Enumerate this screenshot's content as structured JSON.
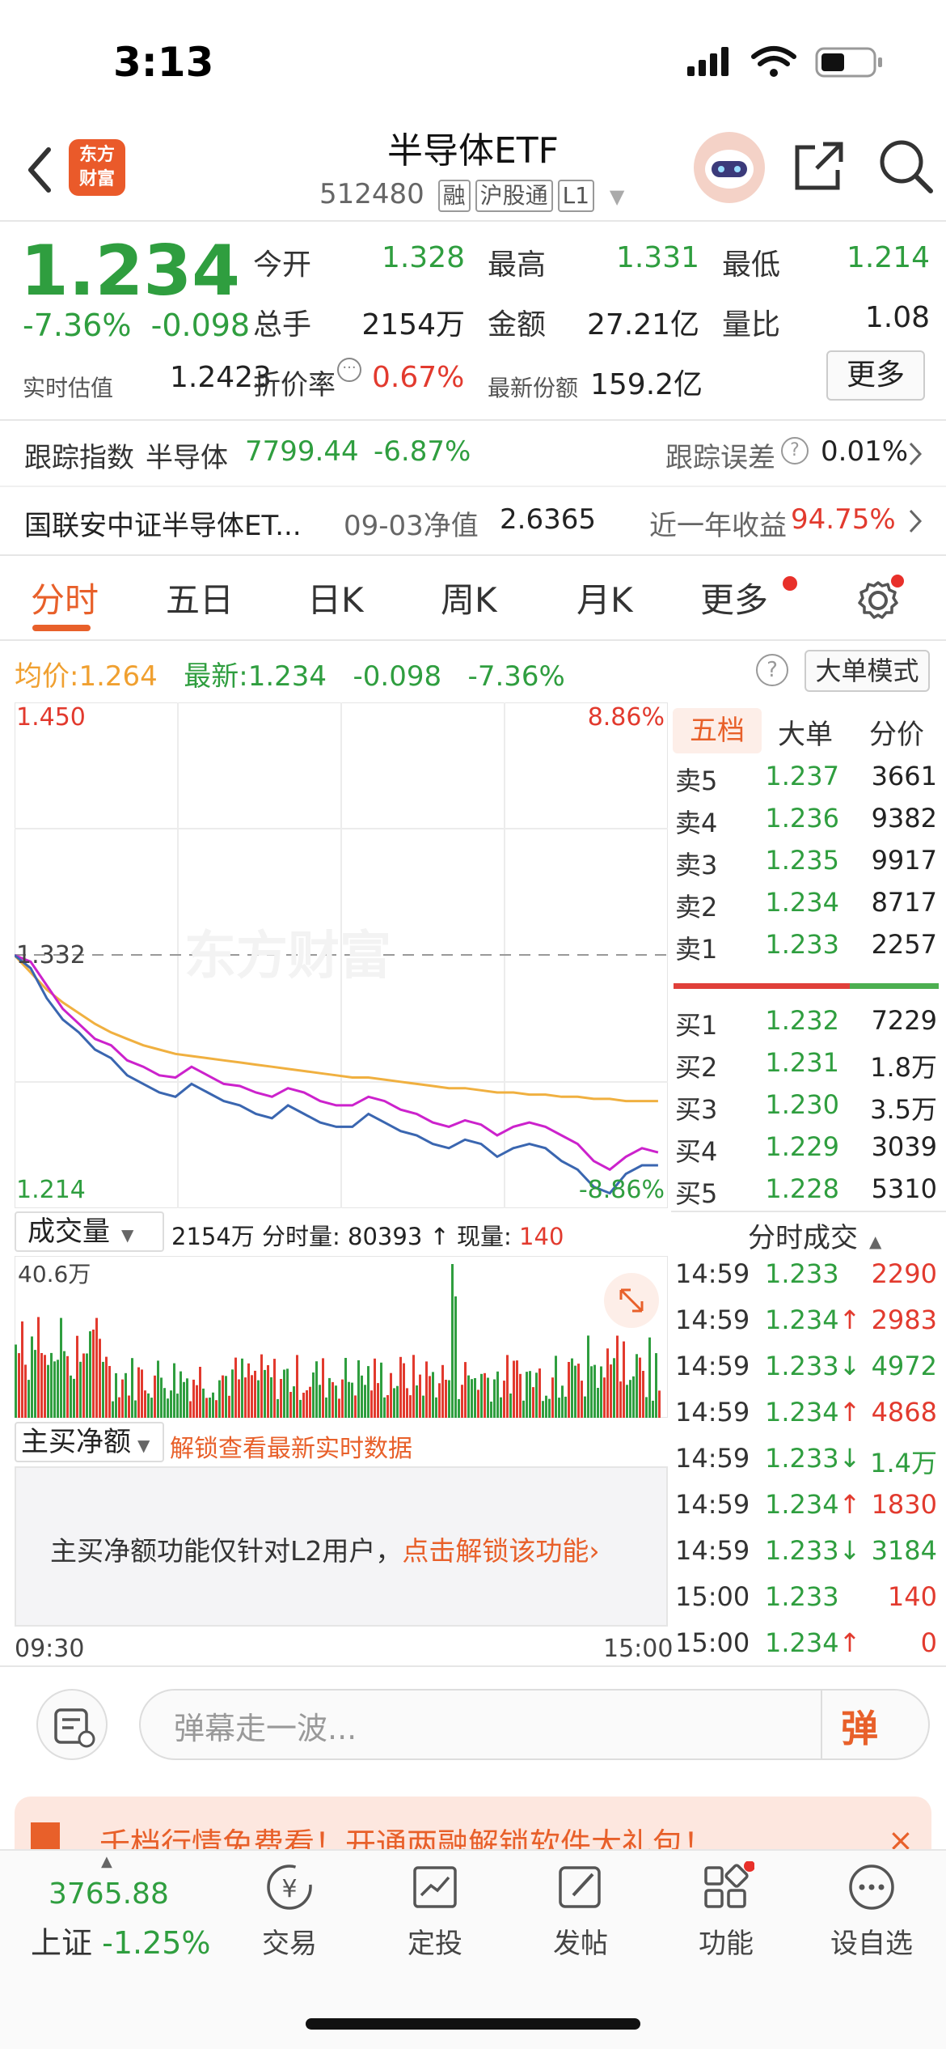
{
  "status": {
    "time": "3:13"
  },
  "header": {
    "logo_line1": "东方",
    "logo_line2": "财富",
    "title": "半导体ETF",
    "code": "512480",
    "tags": [
      "融",
      "沪股通",
      "L1"
    ]
  },
  "quote": {
    "price": "1.234",
    "change_pct": "-7.36%",
    "change": "-0.098",
    "stats": [
      {
        "label": "今开",
        "value": "1.328",
        "color": "green"
      },
      {
        "label": "最高",
        "value": "1.331",
        "color": "green"
      },
      {
        "label": "最低",
        "value": "1.214",
        "color": "green"
      },
      {
        "label": "总手",
        "value": "2154万",
        "color": "black"
      },
      {
        "label": "金额",
        "value": "27.21亿",
        "color": "black"
      },
      {
        "label": "量比",
        "value": "1.08",
        "color": "black"
      }
    ],
    "iopv_label": "实时估值",
    "iopv_value": "1.2423",
    "premium_label": "折价率",
    "premium_value": "0.67%",
    "shares_label": "最新份额",
    "shares_value": "159.2亿",
    "more_label": "更多"
  },
  "tracking": {
    "label": "跟踪指数",
    "index_name": "半导体",
    "index_value": "7799.44",
    "index_change": "-6.87%",
    "error_label": "跟踪误差",
    "error_value": "0.01%"
  },
  "fund": {
    "name": "国联安中证半导体ET...",
    "nav_date_label": "09-03净值",
    "nav_value": "2.6365",
    "yearly_label": "近一年收益",
    "yearly_value": "94.75%"
  },
  "tabs": [
    "分时",
    "五日",
    "日K",
    "周K",
    "月K",
    "更多"
  ],
  "chart": {
    "avg_label": "均价:",
    "avg_value": "1.264",
    "latest_label": "最新:",
    "latest_value": "1.234",
    "latest_change": "-0.098",
    "latest_pct": "-7.36%",
    "mode_button": "大单模式",
    "y_top": "1.450",
    "y_mid": "1.332",
    "y_bottom": "1.214",
    "pct_top": "8.86%",
    "pct_bottom": "-8.86%",
    "watermark": "东方财富",
    "time_start": "09:30",
    "time_end": "15:00"
  },
  "chart_data": {
    "type": "line",
    "title": "",
    "xlabel": "",
    "ylabel": "",
    "ylim": [
      1.214,
      1.45
    ],
    "reference": 1.332,
    "series": [
      {
        "values": [
          1.332,
          1.329,
          1.318,
          1.307,
          1.3,
          1.293,
          1.29,
          1.283,
          1.28,
          1.276,
          1.275,
          1.28,
          1.276,
          1.272,
          1.271,
          1.268,
          1.266,
          1.27,
          1.268,
          1.264,
          1.262,
          1.262,
          1.266,
          1.264,
          1.26,
          1.258,
          1.254,
          1.252,
          1.255,
          1.253,
          1.248,
          1.252,
          1.254,
          1.252,
          1.248,
          1.244,
          1.236,
          1.232,
          1.238,
          1.242,
          1.24
        ]
      },
      {
        "values": [
          1.332,
          1.326,
          1.312,
          1.302,
          1.296,
          1.288,
          1.284,
          1.276,
          1.272,
          1.268,
          1.266,
          1.272,
          1.268,
          1.264,
          1.262,
          1.258,
          1.256,
          1.262,
          1.258,
          1.254,
          1.252,
          1.252,
          1.258,
          1.254,
          1.25,
          1.248,
          1.244,
          1.242,
          1.246,
          1.244,
          1.238,
          1.242,
          1.244,
          1.242,
          1.236,
          1.232,
          1.224,
          1.221,
          1.23,
          1.234,
          1.234
        ]
      },
      {
        "values": [
          1.332,
          1.324,
          1.316,
          1.31,
          1.305,
          1.3,
          1.296,
          1.293,
          1.29,
          1.288,
          1.286,
          1.285,
          1.284,
          1.283,
          1.282,
          1.281,
          1.28,
          1.279,
          1.278,
          1.277,
          1.276,
          1.275,
          1.275,
          1.274,
          1.273,
          1.272,
          1.271,
          1.27,
          1.27,
          1.269,
          1.268,
          1.268,
          1.267,
          1.267,
          1.266,
          1.266,
          1.265,
          1.265,
          1.264,
          1.264,
          1.264
        ]
      }
    ],
    "volume_max_label": "40.6万"
  },
  "volume": {
    "selector": "成交量",
    "total": "2154万",
    "tick_label": "分时量:",
    "tick_value": "80393",
    "now_label": "现量:",
    "now_value": "140",
    "max": "40.6万"
  },
  "netbuy": {
    "selector": "主买净额",
    "unlock_link": "解锁查看最新实时数据",
    "notice": "主买净额功能仅针对L2用户，",
    "notice_link": "点击解锁该功能"
  },
  "orderbook": {
    "tabs": [
      "五档",
      "大单",
      "分价"
    ],
    "sells": [
      {
        "label": "卖5",
        "price": "1.237",
        "vol": "3661"
      },
      {
        "label": "卖4",
        "price": "1.236",
        "vol": "9382"
      },
      {
        "label": "卖3",
        "price": "1.235",
        "vol": "9917"
      },
      {
        "label": "卖2",
        "price": "1.234",
        "vol": "8717"
      },
      {
        "label": "卖1",
        "price": "1.233",
        "vol": "2257"
      }
    ],
    "buys": [
      {
        "label": "买1",
        "price": "1.232",
        "vol": "7229"
      },
      {
        "label": "买2",
        "price": "1.231",
        "vol": "1.8万"
      },
      {
        "label": "买3",
        "price": "1.230",
        "vol": "3.5万"
      },
      {
        "label": "买4",
        "price": "1.229",
        "vol": "3039"
      },
      {
        "label": "买5",
        "price": "1.228",
        "vol": "5310"
      }
    ]
  },
  "ticks": {
    "header": "分时成交",
    "rows": [
      {
        "time": "14:59",
        "price": "1.233",
        "arrow": "",
        "vol": "2290",
        "color": "red"
      },
      {
        "time": "14:59",
        "price": "1.234",
        "arrow": "↑",
        "vol": "2983",
        "color": "red"
      },
      {
        "time": "14:59",
        "price": "1.233",
        "arrow": "↓",
        "vol": "4972",
        "color": "green"
      },
      {
        "time": "14:59",
        "price": "1.234",
        "arrow": "↑",
        "vol": "4868",
        "color": "red"
      },
      {
        "time": "14:59",
        "price": "1.233",
        "arrow": "↓",
        "vol": "1.4万",
        "color": "green"
      },
      {
        "time": "14:59",
        "price": "1.234",
        "arrow": "↑",
        "vol": "1830",
        "color": "red"
      },
      {
        "time": "14:59",
        "price": "1.233",
        "arrow": "↓",
        "vol": "3184",
        "color": "green"
      },
      {
        "time": "15:00",
        "price": "1.233",
        "arrow": "",
        "vol": "140",
        "color": "red"
      },
      {
        "time": "15:00",
        "price": "1.234",
        "arrow": "↑",
        "vol": "0",
        "color": "red"
      }
    ]
  },
  "comment": {
    "placeholder": "弹幕走一波...",
    "danmaku": "弹"
  },
  "banner": {
    "text": "千档行情免费看！开通两融解锁软件大礼包！"
  },
  "bottom_nav": {
    "index_value": "3765.88",
    "index_name": "上证",
    "index_change": "-1.25%",
    "items": [
      "交易",
      "定投",
      "发帖",
      "功能",
      "设自选"
    ]
  }
}
